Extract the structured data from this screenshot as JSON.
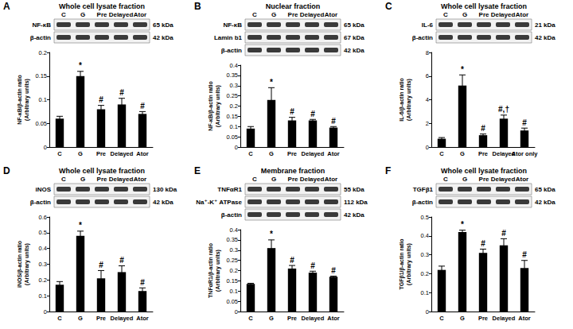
{
  "chart_data": [
    {
      "type": "bar",
      "panel": "A",
      "title": "Whole cell lysate fraction",
      "lanes": [
        "C",
        "G",
        "Pre",
        "Delayed",
        "Ator"
      ],
      "bands": [
        {
          "name": "NF-κB",
          "size": "65 kDa"
        },
        {
          "name": "β-actin",
          "size": "42 kDa"
        }
      ],
      "categories": [
        "C",
        "G",
        "Pre",
        "Delayed",
        "Ator"
      ],
      "values": [
        0.06,
        0.15,
        0.08,
        0.09,
        0.07
      ],
      "errors": [
        0.005,
        0.01,
        0.008,
        0.013,
        0.005
      ],
      "annotations": [
        null,
        "*",
        "#",
        "#",
        "#"
      ],
      "ylabel": "NF-κB/β-actin ratio\n(Arbitrary units)",
      "ylim": [
        0,
        0.2
      ],
      "yticks": [
        0,
        0.05,
        0.1,
        0.15,
        0.2
      ],
      "color": "#000000",
      "grid": false
    },
    {
      "type": "bar",
      "panel": "B",
      "title": "Nuclear fraction",
      "lanes": [
        "C",
        "G",
        "Pre",
        "Delayed",
        "Ator"
      ],
      "bands": [
        {
          "name": "NF-κB",
          "size": "65 kDa"
        },
        {
          "name": "Lamin b1",
          "size": "67 kDa"
        },
        {
          "name": "β-actin",
          "size": "42 kDa"
        }
      ],
      "categories": [
        "C",
        "G",
        "Pre",
        "Delayed",
        "Ator"
      ],
      "values": [
        0.09,
        0.23,
        0.13,
        0.13,
        0.095
      ],
      "errors": [
        0.01,
        0.06,
        0.015,
        0.005,
        0.005
      ],
      "annotations": [
        null,
        "*",
        "#",
        "#",
        "#"
      ],
      "ylabel": "NF-κB/β-actin ratio\n(Arbitrary units)",
      "ylim": [
        0,
        0.4
      ],
      "yticks": [
        0,
        0.05,
        0.1,
        0.15,
        0.2,
        0.25,
        0.3,
        0.35,
        0.4
      ],
      "color": "#000000",
      "grid": false
    },
    {
      "type": "bar",
      "panel": "C",
      "title": "Whole cell lysate fraction",
      "lanes": [
        "C",
        "G",
        "Pre",
        "Delayed",
        "Ator"
      ],
      "bands": [
        {
          "name": "IL-6",
          "size": "21 kDa"
        },
        {
          "name": "β-actin",
          "size": "42 kDa"
        }
      ],
      "categories": [
        "C",
        "G",
        "Pre",
        "Delayed",
        "Ator only"
      ],
      "values": [
        0.7,
        5.2,
        1.0,
        2.4,
        1.4
      ],
      "errors": [
        0.1,
        0.9,
        0.1,
        0.3,
        0.2
      ],
      "annotations": [
        null,
        "*",
        "#",
        "#,†",
        "#"
      ],
      "ylabel": "IL-6/β-actin ratio\n(Arbitrary units)",
      "ylim": [
        0,
        8
      ],
      "yticks": [
        0,
        2,
        4,
        6,
        8
      ],
      "color": "#000000",
      "grid": false
    },
    {
      "type": "bar",
      "panel": "D",
      "title": "Whole cell lysate fraction",
      "lanes": [
        "C",
        "G",
        "Pre",
        "Delayed",
        "Ator"
      ],
      "bands": [
        {
          "name": "iNOS",
          "size": "130 kDa"
        },
        {
          "name": "β-actin",
          "size": "42 kDa"
        }
      ],
      "categories": [
        "C",
        "G",
        "Pre",
        "Delayed",
        "Ator"
      ],
      "values": [
        0.17,
        0.48,
        0.21,
        0.25,
        0.13
      ],
      "errors": [
        0.02,
        0.03,
        0.05,
        0.04,
        0.02
      ],
      "annotations": [
        null,
        "*",
        "#",
        "#",
        "#"
      ],
      "ylabel": "iNOS/β-actin ratio\n(Arbitrary units)",
      "ylim": [
        0,
        0.6
      ],
      "yticks": [
        0,
        0.1,
        0.2,
        0.3,
        0.4,
        0.5,
        0.6
      ],
      "color": "#000000",
      "grid": false
    },
    {
      "type": "bar",
      "panel": "E",
      "title": "Membrane fraction",
      "lanes": [
        "C",
        "G",
        "Pre",
        "Delayed",
        "Ator"
      ],
      "bands": [
        {
          "name": "TNFαR1",
          "size": "55 kDa"
        },
        {
          "name": "Na⁺-K⁺ ATPase",
          "size": "112 kDa"
        },
        {
          "name": "β-actin",
          "size": "42 kDa"
        }
      ],
      "categories": [
        "C",
        "G",
        "Pre",
        "Delayed",
        "Ator"
      ],
      "values": [
        0.135,
        0.31,
        0.21,
        0.19,
        0.17
      ],
      "errors": [
        0.003,
        0.04,
        0.015,
        0.007,
        0.003
      ],
      "annotations": [
        null,
        "*",
        "#",
        "#",
        "#"
      ],
      "ylabel": "TNFαR1/β-actin ratio\n(Arbitrary units)",
      "ylim": [
        0,
        0.4
      ],
      "yticks": [
        0,
        0.05,
        0.1,
        0.15,
        0.2,
        0.25,
        0.3,
        0.35,
        0.4
      ],
      "color": "#000000",
      "grid": false
    },
    {
      "type": "bar",
      "panel": "F",
      "title": "Whole cell lysate fraction",
      "lanes": [
        "C",
        "G",
        "Pre",
        "Delayed",
        "Ator"
      ],
      "bands": [
        {
          "name": "TGFβ1",
          "size": "65 kDa"
        },
        {
          "name": "β-actin",
          "size": "42 kDa"
        }
      ],
      "categories": [
        "C",
        "G",
        "Pre",
        "Delayed",
        "Ator"
      ],
      "values": [
        0.22,
        0.42,
        0.31,
        0.35,
        0.23
      ],
      "errors": [
        0.02,
        0.01,
        0.02,
        0.035,
        0.04
      ],
      "annotations": [
        null,
        "*",
        "#",
        "#",
        "#"
      ],
      "ylabel": "TGFβ1/β-actin ratio\n(Arbitrary units)",
      "ylim": [
        0,
        0.5
      ],
      "yticks": [
        0,
        0.1,
        0.2,
        0.3,
        0.4,
        0.5
      ],
      "color": "#000000",
      "grid": false
    }
  ]
}
